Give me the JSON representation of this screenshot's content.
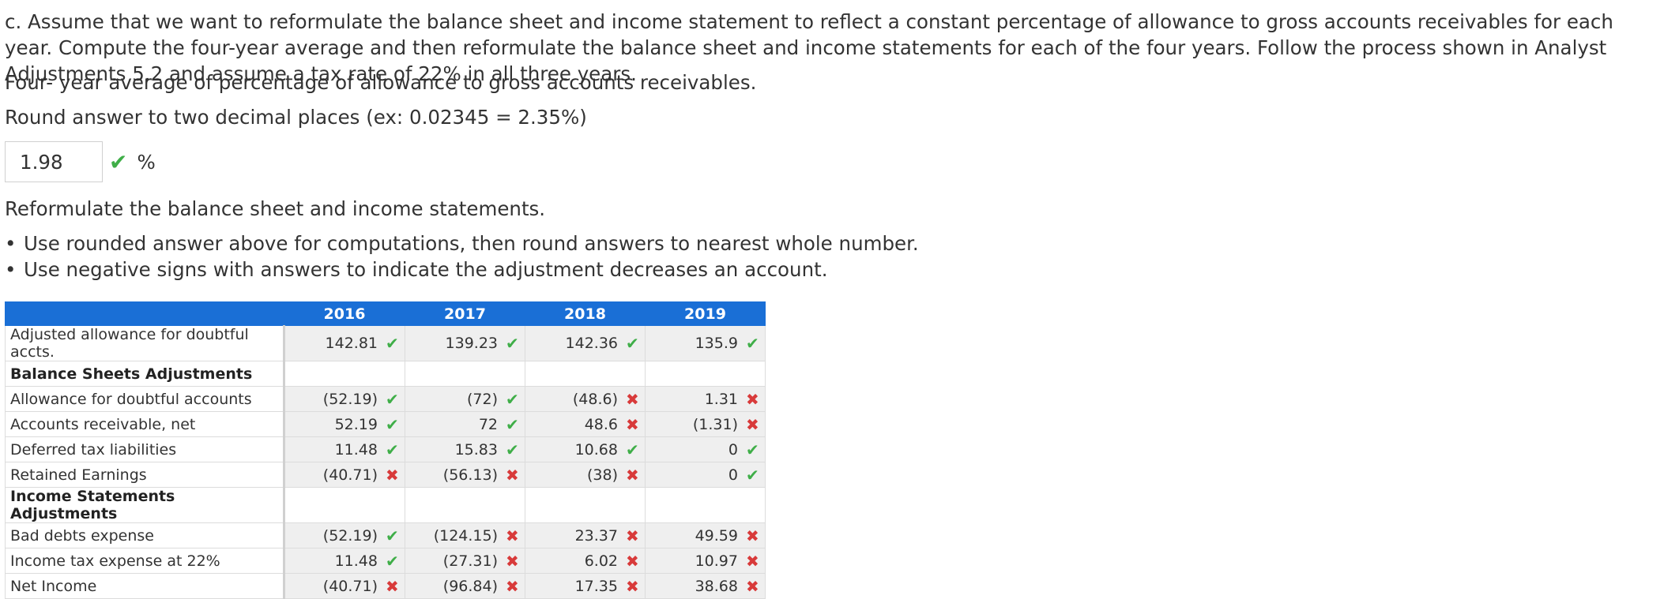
{
  "intro": "c. Assume that we want to reformulate the balance sheet and income statement to reflect a constant percentage of allowance to gross accounts receivables for each year. Compute the four-year average and then reformulate the balance sheet and income statements for each of the four years. Follow the process shown in Analyst Adjustments 5.2 and assume a tax rate of 22% in all three years.",
  "average_prompt": "Four- year average of percentage of allowance to gross accounts receivables.",
  "round_instruction": "Round answer to two decimal places (ex: 0.02345 = 2.35%)",
  "average_answer": {
    "value": "1.98",
    "status": "correct",
    "unit": "%"
  },
  "reformulate_prompt": "Reformulate the balance sheet and income statements.",
  "bullets": [
    "Use rounded answer above for computations, then round answers to nearest whole number.",
    "Use negative signs with answers to indicate the adjustment decreases an account."
  ],
  "table": {
    "years": [
      "2016",
      "2017",
      "2018",
      "2019"
    ],
    "rows": [
      {
        "label": "Adjusted allowance for doubtful accts.",
        "type": "data",
        "cells": [
          {
            "v": "142.81",
            "s": "correct"
          },
          {
            "v": "139.23",
            "s": "correct"
          },
          {
            "v": "142.36",
            "s": "correct"
          },
          {
            "v": "135.9",
            "s": "correct"
          }
        ]
      },
      {
        "label": "Balance Sheets Adjustments",
        "type": "section"
      },
      {
        "label": "Allowance for doubtful accounts",
        "type": "data",
        "cells": [
          {
            "v": "(52.19)",
            "s": "correct"
          },
          {
            "v": "(72)",
            "s": "correct"
          },
          {
            "v": "(48.6)",
            "s": "incorrect"
          },
          {
            "v": "1.31",
            "s": "incorrect"
          }
        ]
      },
      {
        "label": "Accounts receivable, net",
        "type": "data",
        "cells": [
          {
            "v": "52.19",
            "s": "correct"
          },
          {
            "v": "72",
            "s": "correct"
          },
          {
            "v": "48.6",
            "s": "incorrect"
          },
          {
            "v": "(1.31)",
            "s": "incorrect"
          }
        ]
      },
      {
        "label": "Deferred tax liabilities",
        "type": "data",
        "cells": [
          {
            "v": "11.48",
            "s": "correct"
          },
          {
            "v": "15.83",
            "s": "correct"
          },
          {
            "v": "10.68",
            "s": "correct"
          },
          {
            "v": "0",
            "s": "correct"
          }
        ]
      },
      {
        "label": "Retained Earnings",
        "type": "data",
        "cells": [
          {
            "v": "(40.71)",
            "s": "incorrect"
          },
          {
            "v": "(56.13)",
            "s": "incorrect"
          },
          {
            "v": "(38)",
            "s": "incorrect"
          },
          {
            "v": "0",
            "s": "correct"
          }
        ]
      },
      {
        "label": "Income Statements Adjustments",
        "type": "section"
      },
      {
        "label": "Bad debts expense",
        "type": "data",
        "cells": [
          {
            "v": "(52.19)",
            "s": "correct"
          },
          {
            "v": "(124.15)",
            "s": "incorrect"
          },
          {
            "v": "23.37",
            "s": "incorrect"
          },
          {
            "v": "49.59",
            "s": "incorrect"
          }
        ]
      },
      {
        "label": "Income tax expense at 22%",
        "type": "data",
        "cells": [
          {
            "v": "11.48",
            "s": "correct"
          },
          {
            "v": "(27.31)",
            "s": "incorrect"
          },
          {
            "v": "6.02",
            "s": "incorrect"
          },
          {
            "v": "10.97",
            "s": "incorrect"
          }
        ]
      },
      {
        "label": "Net Income",
        "type": "data",
        "cells": [
          {
            "v": "(40.71)",
            "s": "incorrect"
          },
          {
            "v": "(96.84)",
            "s": "incorrect"
          },
          {
            "v": "17.35",
            "s": "incorrect"
          },
          {
            "v": "38.68",
            "s": "incorrect"
          }
        ]
      }
    ]
  },
  "icons": {
    "correct": "check-icon",
    "incorrect": "cross-icon"
  },
  "colors": {
    "header": "#1a6fd6",
    "correct": "#3fae48",
    "incorrect": "#d83a3a"
  }
}
